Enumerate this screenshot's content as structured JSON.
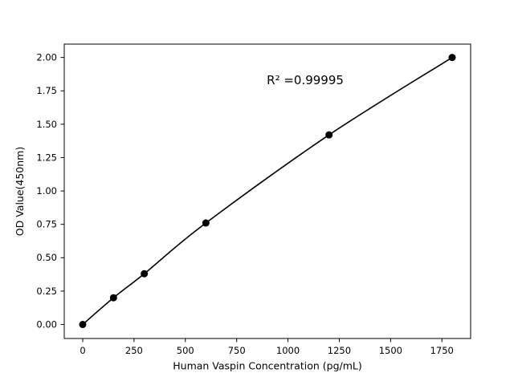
{
  "chart_data": {
    "type": "scatter",
    "title": "",
    "xlabel": "Human Vaspin Concentration (pg/mL)",
    "ylabel": "OD Value(450nm)",
    "x": [
      0,
      150,
      300,
      600,
      1200,
      1800
    ],
    "y": [
      0.0,
      0.2,
      0.38,
      0.76,
      1.42,
      2.0
    ],
    "xlim": [
      -90,
      1890
    ],
    "ylim": [
      -0.105,
      2.1
    ],
    "xticks": [
      0,
      250,
      500,
      750,
      1000,
      1250,
      1500,
      1750
    ],
    "yticks": [
      0.0,
      0.25,
      0.5,
      0.75,
      1.0,
      1.25,
      1.5,
      1.75,
      2.0
    ],
    "ytick_decimals": 2,
    "annotation": "R² =0.99995",
    "annotation_pos": {
      "x_frac": 0.593,
      "y_frac": 0.123
    },
    "line_color": "#000000",
    "marker_color": "#000000",
    "background_color": "#ffffff",
    "grid": false,
    "legend": null,
    "curve": "smooth-fit-through-points"
  }
}
